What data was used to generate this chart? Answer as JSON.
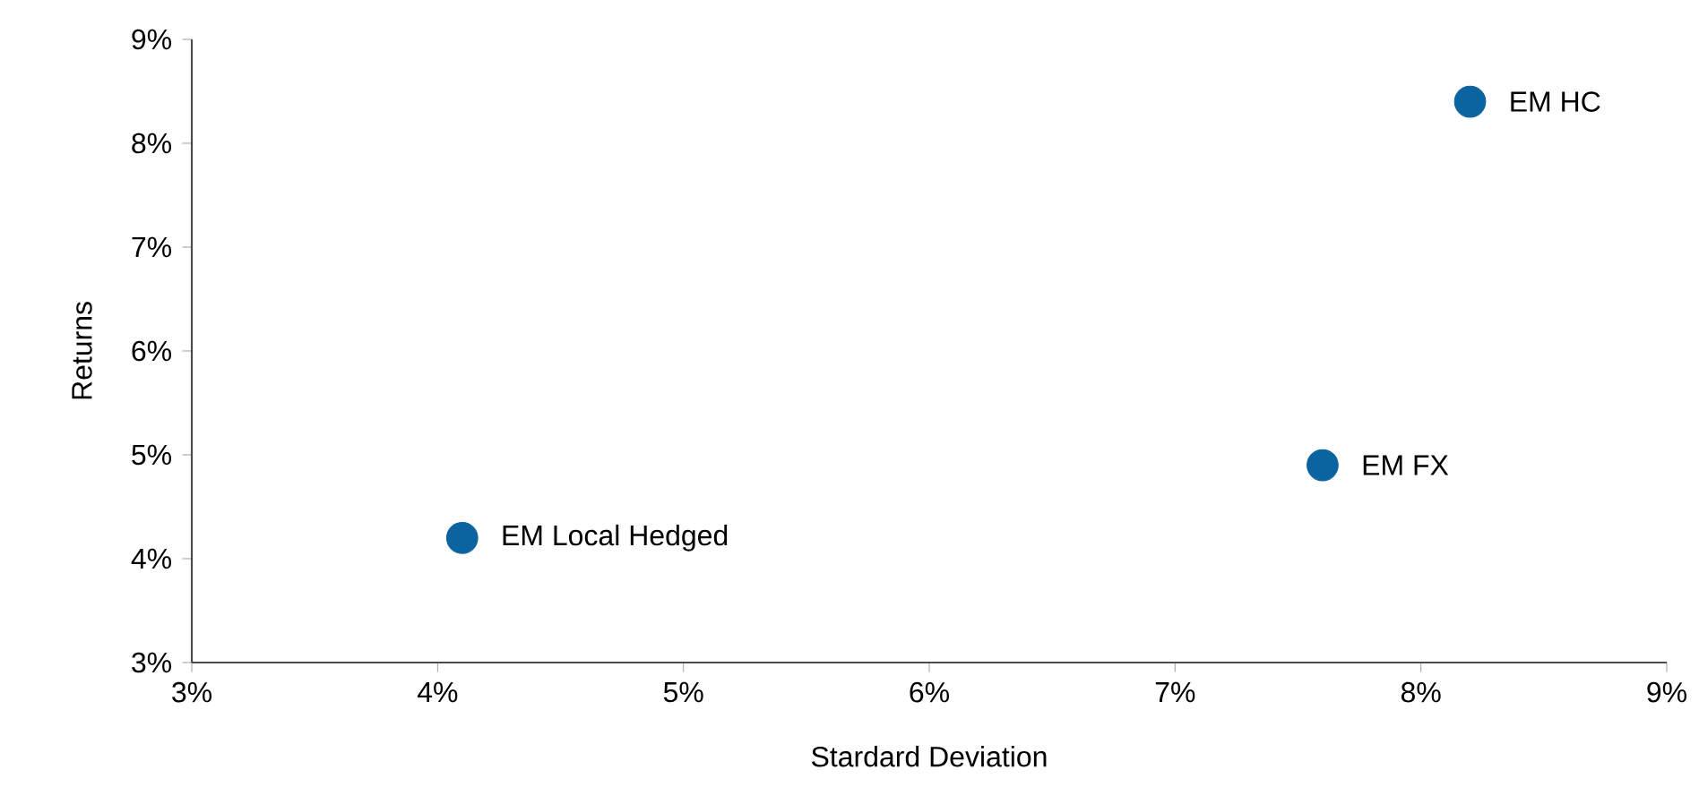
{
  "chart_data": {
    "type": "scatter",
    "xlabel": "Stardard Deviation",
    "ylabel": "Returns",
    "x": [
      4.1,
      7.6,
      8.2
    ],
    "values": [
      4.2,
      4.9,
      8.4
    ],
    "color": "#0b64a0",
    "marker": "circle",
    "xlim": [
      3,
      9
    ],
    "ylim": [
      3,
      9
    ],
    "xticks": [
      {
        "value": 3,
        "label": "3%"
      },
      {
        "value": 4,
        "label": "4%"
      },
      {
        "value": 5,
        "label": "5%"
      },
      {
        "value": 6,
        "label": "6%"
      },
      {
        "value": 7,
        "label": "7%"
      },
      {
        "value": 8,
        "label": "8%"
      },
      {
        "value": 9,
        "label": "9%"
      }
    ],
    "yticks": [
      {
        "value": 3,
        "label": "3%"
      },
      {
        "value": 4,
        "label": "4%"
      },
      {
        "value": 5,
        "label": "5%"
      },
      {
        "value": 6,
        "label": "6%"
      },
      {
        "value": 7,
        "label": "7%"
      },
      {
        "value": 8,
        "label": "8%"
      },
      {
        "value": 9,
        "label": "9%"
      }
    ],
    "annotations": [
      {
        "text": "EM Local Hedged",
        "x": 4.1,
        "y": 4.2
      },
      {
        "text": "EM FX",
        "x": 7.6,
        "y": 4.9
      },
      {
        "text": "EM HC",
        "x": 8.2,
        "y": 8.4
      }
    ]
  }
}
